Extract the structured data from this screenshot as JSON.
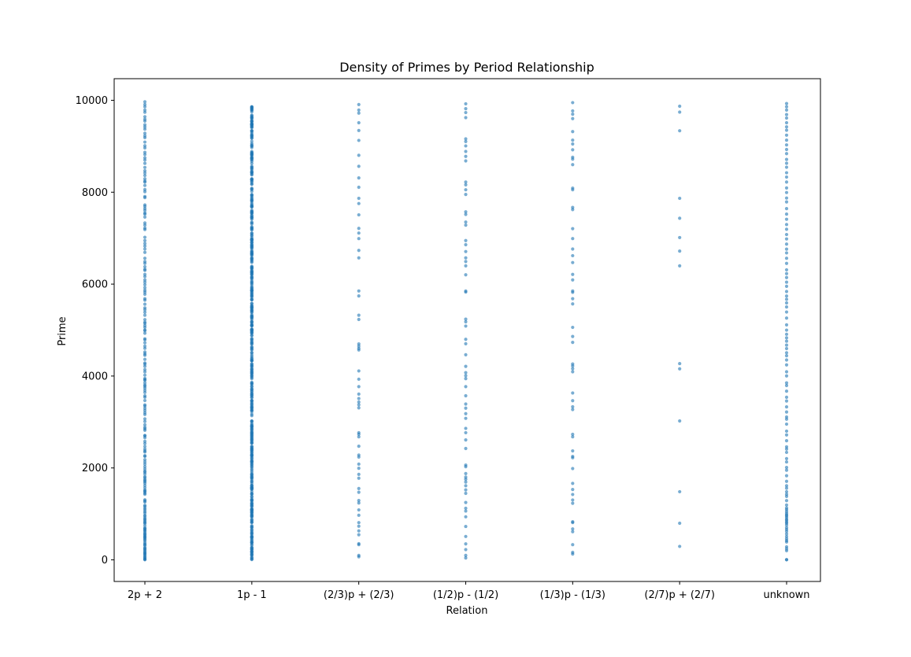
{
  "chart_data": {
    "type": "scatter",
    "title": "Density of Primes by Period Relationship",
    "xlabel": "Relation",
    "ylabel": "Prime",
    "categories": [
      "2p + 2",
      "1p - 1",
      "(2/3)p + (2/3)",
      "(1/2)p - (1/2)",
      "(1/3)p - (1/3)",
      "(2/7)p + (2/7)",
      "unknown"
    ],
    "ylim": [
      -470,
      10470
    ],
    "yticks": [
      0,
      2000,
      4000,
      6000,
      8000,
      10000
    ],
    "grid": false,
    "legend": "none",
    "marker_color": "#1f77b4",
    "marker_alpha": 0.6,
    "series": [
      {
        "category": "2p + 2",
        "values": [
          3,
          11,
          19,
          43,
          59,
          83,
          107,
          131,
          139,
          163,
          179,
          211,
          227,
          251,
          263,
          307,
          331,
          347,
          379,
          419,
          443,
          467,
          491,
          499,
          523,
          547,
          563,
          587,
          619,
          643,
          659,
          683,
          691,
          739,
          787,
          811,
          827,
          859,
          883,
          907,
          947,
          971,
          1019,
          1051,
          1091,
          1123,
          1163,
          1187,
          1259,
          1283,
          1307,
          1427,
          1451,
          1483,
          1499,
          1523,
          1571,
          1619,
          1667,
          1699,
          1723,
          1747,
          1787,
          1811,
          1867,
          1907,
          1931,
          1979,
          2027,
          2083,
          2131,
          2179,
          2251,
          2267,
          2347,
          2371,
          2411,
          2467,
          2531,
          2579,
          2659,
          2699,
          2707,
          2819,
          2851,
          2883,
          2939,
          3011,
          3067,
          3163,
          3203,
          3251,
          3299,
          3347,
          3371,
          3467,
          3539,
          3571,
          3643,
          3691,
          3739,
          3779,
          3803,
          3851,
          3907,
          3923,
          3947,
          4019,
          4091,
          4139,
          4211,
          4259,
          4283,
          4363,
          4451,
          4483,
          4523,
          4603,
          4651,
          4723,
          4787,
          4811,
          4931,
          4987,
          5003,
          5059,
          5099,
          5147,
          5171,
          5227,
          5323,
          5387,
          5443,
          5483,
          5563,
          5651,
          5683,
          5779,
          5827,
          5867,
          5923,
          5987,
          6043,
          6091,
          6163,
          6211,
          6299,
          6323,
          6379,
          6451,
          6491,
          6563,
          6691,
          6763,
          6827,
          6883,
          6947,
          7019,
          7187,
          7219,
          7283,
          7331,
          7459,
          7523,
          7547,
          7603,
          7643,
          7691,
          7723,
          7883,
          7907,
          8011,
          8059,
          8147,
          8219,
          8243,
          8291,
          8363,
          8419,
          8467,
          8539,
          8627,
          8699,
          8747,
          8819,
          8867,
          8963,
          9011,
          9091,
          9187,
          9227,
          9283,
          9371,
          9419,
          9467,
          9547,
          9587,
          9643,
          9739,
          9787,
          9859,
          9907,
          9967
        ]
      },
      {
        "category": "1p - 1",
        "values": [
          7,
          17,
          23,
          47,
          59,
          97,
          109,
          113,
          131,
          149,
          167,
          179,
          181,
          193,
          223,
          229,
          233,
          257,
          263,
          269,
          313,
          337,
          367,
          379,
          383,
          389,
          419,
          433,
          461,
          487,
          491,
          499,
          503,
          509,
          541,
          571,
          577,
          593,
          619,
          647,
          659,
          701,
          709,
          727,
          743,
          811,
          821,
          823,
          857,
          863,
          887,
          937,
          941,
          953,
          971,
          977,
          983,
          1019,
          1021,
          1033,
          1051,
          1063,
          1069,
          1087,
          1091,
          1097,
          1103,
          1109,
          1153,
          1171,
          1181,
          1193,
          1217,
          1223,
          1229,
          1259,
          1291,
          1297,
          1301,
          1303,
          1327,
          1367,
          1381,
          1429,
          1433,
          1447,
          1487,
          1531,
          1543,
          1549,
          1553,
          1567,
          1571,
          1579,
          1583,
          1607,
          1619,
          1621,
          1663,
          1697,
          1709,
          1741,
          1777,
          1783,
          1789,
          1811,
          1823,
          1847,
          1861,
          1873,
          1913,
          1949,
          1979,
          2017,
          2029,
          2063,
          2069,
          2099,
          2113,
          2137,
          2141,
          2143,
          2153,
          2179,
          2207,
          2221,
          2251,
          2269,
          2273,
          2281,
          2287,
          2309,
          2339,
          2341,
          2371,
          2383,
          2389,
          2411,
          2417,
          2423,
          2447,
          2459,
          2473,
          2539,
          2543,
          2549,
          2579,
          2593,
          2617,
          2621,
          2633,
          2657,
          2663,
          2687,
          2699,
          2713,
          2731,
          2741,
          2753,
          2767,
          2777,
          2789,
          2819,
          2833,
          2851,
          2861,
          2887,
          2897,
          2903,
          2909,
          2927,
          2939,
          2971,
          3011,
          3019,
          3023,
          3137,
          3167,
          3221,
          3251,
          3257,
          3259,
          3299,
          3301,
          3313,
          3331,
          3343,
          3371,
          3389,
          3407,
          3433,
          3461,
          3463,
          3469,
          3527,
          3539,
          3571,
          3581,
          3593,
          3617,
          3623,
          3659,
          3673,
          3701,
          3709,
          3727,
          3767,
          3779,
          3821,
          3833,
          3847,
          3863,
          3943,
          3967,
          3989,
          4007,
          4019,
          4051,
          4057,
          4073,
          4091,
          4099,
          4127,
          4139,
          4153,
          4177,
          4211,
          4219,
          4229,
          4259,
          4261,
          4327,
          4337,
          4339,
          4349,
          4373,
          4391,
          4423,
          4457,
          4499,
          4513,
          4567,
          4583,
          4603,
          4621,
          4637,
          4691,
          4703,
          4723,
          4733,
          4759,
          4787,
          4801,
          4817,
          4877,
          4889,
          4933,
          4937,
          4943,
          4967,
          4969,
          4987,
          4993,
          5003,
          5009,
          5011,
          5023,
          5087,
          5099,
          5101,
          5107,
          5113,
          5147,
          5171,
          5179,
          5189,
          5233,
          5261,
          5273,
          5281,
          5297,
          5303,
          5309,
          5333,
          5381,
          5393,
          5417,
          5419,
          5437,
          5443,
          5477,
          5479,
          5483,
          5503,
          5507,
          5527,
          5531,
          5573,
          5581,
          5657,
          5659,
          5669,
          5701,
          5737,
          5741,
          5749,
          5779,
          5783,
          5813,
          5821,
          5851,
          5857,
          5861,
          5867,
          5869,
          5897,
          5903,
          5927,
          5939,
          5981,
          6011,
          6029,
          6047,
          6073,
          6113,
          6131,
          6143,
          6151,
          6173,
          6211,
          6217,
          6221,
          6247,
          6257,
          6263,
          6269,
          6287,
          6301,
          6337,
          6343,
          6353,
          6367,
          6373,
          6389,
          6473,
          6491,
          6521,
          6529,
          6553,
          6563,
          6571,
          6619,
          6637,
          6653,
          6659,
          6661,
          6673,
          6691,
          6701,
          6709,
          6737,
          6779,
          6793,
          6803,
          6823,
          6829,
          6833,
          6857,
          6863,
          6899,
          6907,
          6917,
          6949,
          6959,
          6967,
          6971,
          6977,
          6983,
          7019,
          7057,
          7069,
          7103,
          7109,
          7177,
          7193,
          7207,
          7219,
          7229,
          7247,
          7309,
          7331,
          7349,
          7411,
          7433,
          7451,
          7457,
          7459,
          7487,
          7499,
          7541,
          7547,
          7549,
          7573,
          7577,
          7583,
          7607,
          7673,
          7687,
          7691,
          7699,
          7703,
          7727,
          7753,
          7793,
          7817,
          7823,
          7829,
          7853,
          7873,
          7901,
          7927,
          7937,
          7949,
          8017,
          8059,
          8069,
          8087,
          8171,
          8179,
          8219,
          8233,
          8263,
          8269,
          8273,
          8287,
          8291,
          8377,
          8389,
          8419,
          8423,
          8429,
          8447,
          8461,
          8501,
          8513,
          8537,
          8543,
          8563,
          8623,
          8669,
          8699,
          8713,
          8731,
          8741,
          8747,
          8753,
          8783,
          8807,
          8819,
          8821,
          8837,
          8839,
          8861,
          8863,
          8887,
          8971,
          8999,
          9011,
          9029,
          9059,
          9109,
          9173,
          9181,
          9203,
          9221,
          9227,
          9241,
          9257,
          9293,
          9323,
          9337,
          9341,
          9403,
          9419,
          9421,
          9439,
          9461,
          9463,
          9467,
          9473,
          9479,
          9491,
          9497,
          9533,
          9539,
          9547,
          9551,
          9587,
          9613,
          9619,
          9629,
          9643,
          9661,
          9677,
          9749,
          9781,
          9787,
          9803,
          9817,
          9829,
          9833,
          9851,
          9857,
          9859
        ]
      },
      {
        "category": "(2/3)p + (2/3)",
        "values": [
          67,
          97,
          331,
          353,
          547,
          631,
          733,
          811,
          971,
          1087,
          1237,
          1291,
          1471,
          1553,
          1777,
          1861,
          1993,
          2083,
          2237,
          2281,
          2473,
          2677,
          2731,
          2767,
          3307,
          3373,
          3433,
          3511,
          3607,
          3769,
          3931,
          4111,
          4567,
          4603,
          4651,
          4699,
          5231,
          5323,
          5743,
          5851,
          6571,
          6733,
          6991,
          7111,
          7213,
          7507,
          7753,
          7867,
          8107,
          8311,
          8563,
          8803,
          9127,
          9343,
          9511,
          9721,
          9787,
          9907
        ]
      },
      {
        "category": "(1/2)p - (1/2)",
        "values": [
          41,
          97,
          223,
          347,
          509,
          727,
          937,
          1063,
          1123,
          1249,
          1447,
          1523,
          1613,
          1693,
          1753,
          1801,
          1877,
          2027,
          2063,
          2423,
          2609,
          2767,
          2861,
          3079,
          3181,
          3301,
          3391,
          3571,
          3769,
          3943,
          4007,
          4073,
          4211,
          4463,
          4703,
          4799,
          5087,
          5179,
          5237,
          5827,
          5849,
          6203,
          6397,
          6491,
          6571,
          6709,
          6857,
          6947,
          7283,
          7351,
          7517,
          7573,
          7951,
          8053,
          8161,
          8221,
          8681,
          8779,
          8887,
          9007,
          9103,
          9161,
          9623,
          9733,
          9817,
          9923
        ]
      },
      {
        "category": "(1/3)p - (1/3)",
        "values": [
          127,
          163,
          331,
          613,
          673,
          811,
          829,
          1231,
          1303,
          1423,
          1531,
          1663,
          1987,
          2221,
          2251,
          2371,
          2677,
          2731,
          3271,
          3331,
          3463,
          3631,
          4093,
          4159,
          4219,
          4261,
          4733,
          4861,
          5059,
          5569,
          5683,
          5821,
          5851,
          6091,
          6211,
          6469,
          6619,
          6763,
          6991,
          7207,
          7621,
          7669,
          8053,
          8089,
          8599,
          8719,
          8761,
          8923,
          9049,
          9133,
          9319,
          9601,
          9697,
          9769,
          9949
        ]
      },
      {
        "category": "(2/7)p + (2/7)",
        "values": [
          293,
          797,
          1483,
          3023,
          4157,
          4271,
          6397,
          6719,
          7013,
          7433,
          7867,
          9337,
          9743,
          9871
        ]
      },
      {
        "category": "unknown",
        "values": [
          2,
          5,
          199,
          241,
          283,
          389,
          421,
          461,
          509,
          563,
          619,
          661,
          701,
          757,
          797,
          821,
          857,
          881,
          919,
          953,
          977,
          1009,
          1049,
          1093,
          1129,
          1193,
          1289,
          1381,
          1427,
          1483,
          1559,
          1613,
          1709,
          1831,
          1951,
          2011,
          2131,
          2203,
          2339,
          2411,
          2459,
          2593,
          2719,
          2801,
          2953,
          3061,
          3109,
          3217,
          3329,
          3457,
          3539,
          3671,
          3793,
          3851,
          4003,
          4093,
          4243,
          4349,
          4441,
          4507,
          4597,
          4673,
          4759,
          4831,
          4909,
          4999,
          5113,
          5261,
          5393,
          5503,
          5591,
          5669,
          5741,
          5839,
          5953,
          6043,
          6143,
          6229,
          6311,
          6451,
          6563,
          6679,
          6761,
          6871,
          6983,
          7079,
          7193,
          7297,
          7411,
          7523,
          7643,
          7789,
          7873,
          7993,
          8093,
          8221,
          8329,
          8423,
          8543,
          8629,
          8713,
          8839,
          8929,
          9029,
          9133,
          9241,
          9349,
          9421,
          9511,
          9613,
          9689,
          9787,
          9859,
          9929
        ]
      }
    ]
  }
}
